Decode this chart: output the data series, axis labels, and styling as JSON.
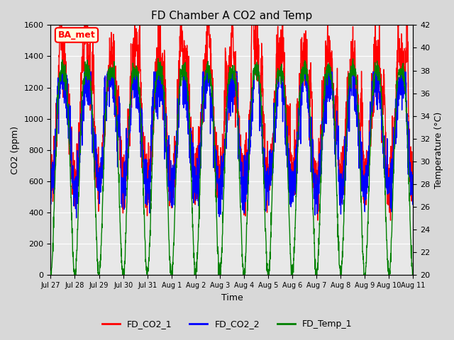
{
  "title": "FD Chamber A CO2 and Temp",
  "xlabel": "Time",
  "ylabel_left": "CO2 (ppm)",
  "ylabel_right": "Temperature (°C)",
  "ylim_left": [
    0,
    1600
  ],
  "ylim_right": [
    20,
    42
  ],
  "yticks_left": [
    0,
    200,
    400,
    600,
    800,
    1000,
    1200,
    1400,
    1600
  ],
  "yticks_right": [
    20,
    22,
    24,
    26,
    28,
    30,
    32,
    34,
    36,
    38,
    40,
    42
  ],
  "xtick_labels": [
    "Jul 27",
    "Jul 28",
    "Jul 29",
    "Jul 30",
    "Jul 31",
    "Aug 1",
    "Aug 2",
    "Aug 3",
    "Aug 4",
    "Aug 5",
    "Aug 6",
    "Aug 7",
    "Aug 8",
    "Aug 9",
    "Aug 10",
    "Aug 11"
  ],
  "legend_labels": [
    "FD_CO2_1",
    "FD_CO2_2",
    "FD_Temp_1"
  ],
  "legend_colors": [
    "red",
    "blue",
    "green"
  ],
  "annotation_text": "BA_met",
  "annotation_color": "red",
  "annotation_bg": "lightyellow",
  "bg_color": "#d8d8d8",
  "plot_bg": "#e8e8e8",
  "co2_1_color": "red",
  "co2_2_color": "blue",
  "temp_color": "green",
  "line_width": 1.0,
  "num_days": 15,
  "seed": 42
}
